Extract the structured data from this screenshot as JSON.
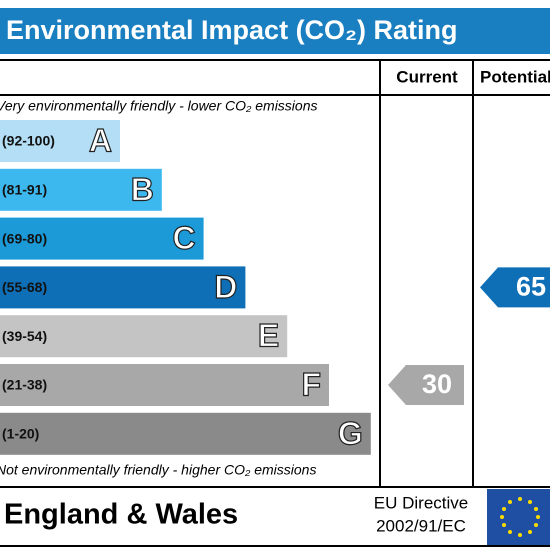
{
  "header": {
    "title": "Environmental Impact (CO₂) Rating"
  },
  "columns": {
    "current": "Current",
    "potential": "Potential"
  },
  "top_note": "Very environmentally friendly - lower CO₂ emissions",
  "bottom_note": "Not environmentally friendly - higher CO₂ emissions",
  "bands": [
    {
      "range": "(92-100)",
      "letter": "A",
      "color": "#b3def5"
    },
    {
      "range": "(81-91)",
      "letter": "B",
      "color": "#3db8ee"
    },
    {
      "range": "(69-80)",
      "letter": "C",
      "color": "#1c9ad8"
    },
    {
      "range": "(55-68)",
      "letter": "D",
      "color": "#0f6fb6"
    },
    {
      "range": "(39-54)",
      "letter": "E",
      "color": "#c4c4c4"
    },
    {
      "range": "(21-38)",
      "letter": "F",
      "color": "#a8a8a8"
    },
    {
      "range": "(1-20)",
      "letter": "G",
      "color": "#8a8a8a"
    }
  ],
  "current": 30,
  "potential": 65,
  "footer": {
    "region": "England & Wales",
    "directive": "EU Directive",
    "directive_number": "2002/91/EC"
  }
}
